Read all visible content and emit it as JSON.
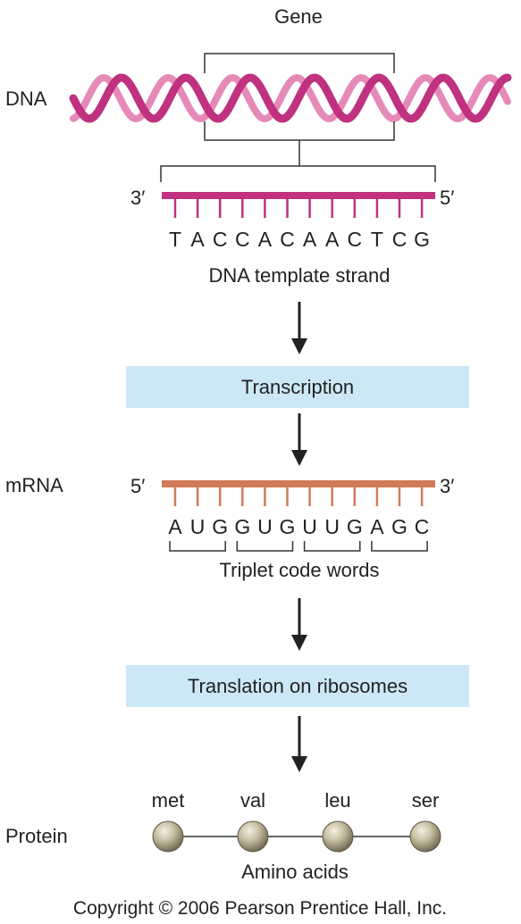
{
  "labels": {
    "gene": "Gene",
    "dna": "DNA",
    "mrna": "mRNA",
    "protein": "Protein",
    "template_caption": "DNA template strand",
    "triplet_caption": "Triplet code words",
    "amino_caption": "Amino acids",
    "copyright": "Copyright © 2006 Pearson Prentice Hall, Inc."
  },
  "template_strand": {
    "left_end": "3′",
    "right_end": "5′",
    "bases": [
      "T",
      "A",
      "C",
      "C",
      "A",
      "C",
      "A",
      "A",
      "C",
      "T",
      "C",
      "G"
    ]
  },
  "mrna_strand": {
    "left_end": "5′",
    "right_end": "3′",
    "bases": [
      "A",
      "U",
      "G",
      "G",
      "U",
      "G",
      "U",
      "U",
      "G",
      "A",
      "G",
      "C"
    ]
  },
  "steps": {
    "transcription": "Transcription",
    "translation": "Translation on ribosomes"
  },
  "amino_acids": [
    "met",
    "val",
    "leu",
    "ser"
  ],
  "colors": {
    "dna_strand": "#c0317f",
    "dna_strand_light": "#e58ab8",
    "mrna_strand": "#d27a58",
    "step_box": "#cce8f6",
    "arrow": "#222222",
    "bead": "#b6ac8f"
  }
}
